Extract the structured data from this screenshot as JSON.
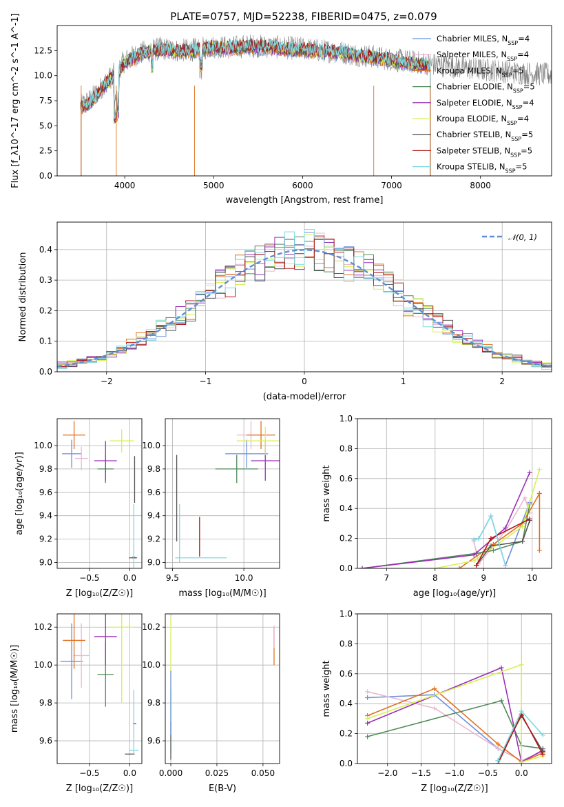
{
  "title": "PLATE=0757, MJD=52238, FIBERID=0475, z=0.079",
  "colors": {
    "chabrier_miles": "#6a8fe0",
    "salpeter_miles": "#e8b8d0",
    "kroupa_miles": "#e07020",
    "chabrier_elodie": "#4f8a5a",
    "salpeter_elodie": "#9a2fb5",
    "kroupa_elodie": "#d8f050",
    "chabrier_stelib": "#555555",
    "salpeter_stelib": "#b01818",
    "kroupa_stelib": "#7fd8e0",
    "data_gray": "#808080"
  },
  "chart_data": [
    {
      "id": "spectrum",
      "type": "line",
      "xlabel": "wavelength [Angstrom, rest frame]",
      "ylabel": "Flux [f_λ10^-17 erg cm^-2 s^-1 A^-1]",
      "xlim": [
        3240,
        8800
      ],
      "ylim": [
        0,
        15
      ],
      "xticks": [
        4000,
        5000,
        6000,
        7000,
        8000
      ],
      "yticks": [
        0.0,
        2.5,
        5.0,
        7.5,
        10.0,
        12.5
      ],
      "ytick_labels": [
        "0.0",
        "2.5",
        "5.0",
        "7.5",
        "10.0",
        "12.5"
      ],
      "legend_position": "top-right",
      "legend": [
        {
          "pre": "Chabrier MILES, N",
          "sub": "SSP",
          "post": "=4",
          "color": "#6a8fe0"
        },
        {
          "pre": "Salpeter MILES, N",
          "sub": "SSP",
          "post": "=4",
          "color": "#e8b8d0"
        },
        {
          "pre": "Kroupa MILES, N",
          "sub": "SSP",
          "post": "=5",
          "color": "#e07020"
        },
        {
          "pre": "Chabrier ELODIE, N",
          "sub": "SSP",
          "post": "=5",
          "color": "#4f8a5a"
        },
        {
          "pre": "Salpeter ELODIE, N",
          "sub": "SSP",
          "post": "=4",
          "color": "#9a2fb5"
        },
        {
          "pre": "Kroupa ELODIE, N",
          "sub": "SSP",
          "post": "=4",
          "color": "#d8f050"
        },
        {
          "pre": "Chabrier STELIB, N",
          "sub": "SSP",
          "post": "=5",
          "color": "#555555"
        },
        {
          "pre": "Salpeter STELIB, N",
          "sub": "SSP",
          "post": "=5",
          "color": "#b01818"
        },
        {
          "pre": "Kroupa STELIB, N",
          "sub": "SSP",
          "post": "=5",
          "color": "#7fd8e0"
        }
      ],
      "continuum": {
        "x": [
          3500,
          3600,
          3700,
          3800,
          3900,
          4000,
          4200,
          4400,
          4600,
          4800,
          5000,
          5200,
          5400,
          5600,
          5800,
          6000,
          6200,
          6400,
          6600,
          6800,
          7000,
          7200,
          7400
        ],
        "y": [
          6.8,
          7.2,
          8.2,
          9.3,
          10.0,
          11.3,
          12.2,
          12.6,
          12.4,
          12.5,
          12.8,
          12.7,
          12.9,
          12.8,
          12.6,
          12.6,
          12.4,
          12.3,
          12.0,
          11.8,
          11.5,
          11.2,
          11.0
        ]
      },
      "data_continuum": {
        "x": [
          3500,
          3600,
          3700,
          3800,
          3900,
          4000,
          4200,
          4400,
          4600,
          4800,
          5000,
          5200,
          5400,
          5600,
          5800,
          6000,
          6200,
          6400,
          6600,
          6800,
          7000,
          7200,
          7400,
          7600,
          7800,
          8000,
          8200,
          8400,
          8600,
          8800
        ],
        "y": [
          7.0,
          7.5,
          8.4,
          9.5,
          10.3,
          11.5,
          12.3,
          12.7,
          12.5,
          12.6,
          12.9,
          12.8,
          13.0,
          12.9,
          12.8,
          12.7,
          12.5,
          12.4,
          12.1,
          11.9,
          11.6,
          11.4,
          11.2,
          11.0,
          10.8,
          10.6,
          10.5,
          10.3,
          10.2,
          10.1
        ]
      },
      "drop_edges_x": [
        3510,
        3905,
        4785,
        6800,
        7435
      ]
    },
    {
      "id": "residuals",
      "type": "histogram",
      "xlabel": "(data-model)/error",
      "ylabel": "Normed distribution",
      "xlim": [
        -2.5,
        2.5
      ],
      "ylim": [
        0,
        0.49
      ],
      "xticks": [
        -2,
        -1,
        0,
        1,
        2
      ],
      "xtick_labels": [
        "−2",
        "−1",
        "0",
        "1",
        "2"
      ],
      "yticks": [
        0.0,
        0.1,
        0.2,
        0.3,
        0.4
      ],
      "ytick_labels": [
        "0.0",
        "0.1",
        "0.2",
        "0.3",
        "0.4"
      ],
      "legend_position": "top-right",
      "legend_label": "𝒩(0, 1)",
      "normal_curve": {
        "mean": 0,
        "sigma": 1,
        "color": "#5b8fd6"
      },
      "bins": {
        "start": -2.5,
        "width": 0.1,
        "count": 50
      }
    },
    {
      "id": "z_age",
      "type": "errorbar",
      "xlabel": "Z [log₁₀(Z/Z☉)]",
      "ylabel": "age  [log₁₀(age/yr)]",
      "xlim": [
        -0.9,
        0.15
      ],
      "ylim": [
        8.95,
        10.23
      ],
      "xticks": [
        -0.5,
        0.0
      ],
      "xtick_labels": [
        "−0.5",
        "0.0"
      ],
      "yticks": [
        9.0,
        9.2,
        9.4,
        9.6,
        9.8,
        10.0
      ],
      "ytick_labels": [
        "9.0",
        "9.2",
        "9.4",
        "9.6",
        "9.8",
        "10.0"
      ],
      "points": [
        {
          "x": -0.72,
          "xe": 0.12,
          "y": 9.93,
          "ye": 0.12,
          "color": "#6a8fe0"
        },
        {
          "x": -0.6,
          "xe": 0.08,
          "y": 9.89,
          "ye": 0.1,
          "color": "#e8b8d0"
        },
        {
          "x": -0.69,
          "xe": 0.14,
          "y": 10.09,
          "ye": 0.12,
          "color": "#e07020"
        },
        {
          "x": -0.3,
          "xe": 0.1,
          "y": 9.8,
          "ye": 0.12,
          "color": "#4f8a5a"
        },
        {
          "x": -0.3,
          "xe": 0.14,
          "y": 9.87,
          "ye": 0.17,
          "color": "#9a2fb5"
        },
        {
          "x": -0.1,
          "xe": 0.15,
          "y": 10.04,
          "ye": 0.1,
          "color": "#d8f050"
        },
        {
          "x": 0.04,
          "xe": 0.05,
          "y": 9.04,
          "ye": 0.0,
          "color": "#555555"
        },
        {
          "x": 0.05,
          "xe": 0.02,
          "y": 9.04,
          "ye": 0.0,
          "color": "#b01818"
        },
        {
          "x": 0.05,
          "xe": 0.02,
          "y": 9.05,
          "ye": 0.45,
          "color": "#7fd8e0"
        },
        {
          "x": 0.06,
          "xe": 0.0,
          "y": 9.71,
          "ye": 0.2,
          "color": "#555555"
        }
      ]
    },
    {
      "id": "mass_age",
      "type": "errorbar",
      "xlabel": "mass [log₁₀(M/M☉)]",
      "ylabel": "",
      "xlim": [
        9.45,
        10.25
      ],
      "ylim": [
        8.95,
        10.23
      ],
      "xticks": [
        9.5,
        10.0
      ],
      "xtick_labels": [
        "9.5",
        "10.0"
      ],
      "yticks": [
        9.0,
        9.2,
        9.4,
        9.6,
        9.8,
        10.0
      ],
      "ytick_labels": [
        "9.0",
        "9.2",
        "9.4",
        "9.6",
        "9.8",
        "10.0"
      ],
      "points": [
        {
          "x": 10.02,
          "xe": 0.15,
          "y": 9.93,
          "ye": 0.12,
          "color": "#6a8fe0"
        },
        {
          "x": 10.05,
          "xe": 0.1,
          "y": 10.09,
          "ye": 0.12,
          "color": "#e8b8d0"
        },
        {
          "x": 10.12,
          "xe": 0.1,
          "y": 10.09,
          "ye": 0.12,
          "color": "#e07020"
        },
        {
          "x": 9.95,
          "xe": 0.15,
          "y": 9.8,
          "ye": 0.12,
          "color": "#4f8a5a"
        },
        {
          "x": 10.15,
          "xe": 0.1,
          "y": 9.87,
          "ye": 0.17,
          "color": "#9a2fb5"
        },
        {
          "x": 10.15,
          "xe": 0.2,
          "y": 10.04,
          "ye": 0.12,
          "color": "#d8f050"
        },
        {
          "x": 9.53,
          "xe": 0.0,
          "y": 9.55,
          "ye": 0.37,
          "color": "#555555"
        },
        {
          "x": 9.69,
          "xe": 0.0,
          "y": 9.22,
          "ye": 0.17,
          "color": "#b01818"
        },
        {
          "x": 9.7,
          "xe": 0.18,
          "y": 9.04,
          "ye": 0.0,
          "color": "#7fd8e0"
        },
        {
          "x": 9.55,
          "xe": 0.0,
          "y": 9.25,
          "ye": 0.25,
          "color": "#7fd8e0"
        }
      ]
    },
    {
      "id": "age_weight",
      "type": "line",
      "xlabel": "age  [log₁₀(age/yr)]",
      "ylabel": "mass weight",
      "xlim": [
        6.4,
        10.4
      ],
      "ylim": [
        0,
        1.0
      ],
      "xticks": [
        7,
        8,
        9,
        10
      ],
      "xtick_labels": [
        "7",
        "8",
        "9",
        "10"
      ],
      "yticks": [
        0.0,
        0.2,
        0.4,
        0.6,
        0.8,
        1.0
      ],
      "ytick_labels": [
        "0.0",
        "0.2",
        "0.4",
        "0.6",
        "0.8",
        "1.0"
      ],
      "series": [
        {
          "color": "#6a8fe0",
          "x": [
            8.8,
            8.9,
            9.15,
            9.45,
            9.95
          ],
          "y": [
            0.19,
            0.2,
            0.35,
            0.02,
            0.44
          ]
        },
        {
          "color": "#e8b8d0",
          "x": [
            8.8,
            8.9,
            9.45,
            9.85,
            9.95
          ],
          "y": [
            0.18,
            0.03,
            0.25,
            0.47,
            0.37
          ]
        },
        {
          "color": "#e07020",
          "x": [
            8.5,
            9.2,
            9.8,
            10.15,
            10.15
          ],
          "y": [
            0.0,
            0.16,
            0.3,
            0.5,
            0.12
          ]
        },
        {
          "color": "#4f8a5a",
          "x": [
            6.5,
            8.85,
            9.2,
            9.8,
            9.95
          ],
          "y": [
            0.0,
            0.1,
            0.12,
            0.18,
            0.43
          ]
        },
        {
          "color": "#9a2fb5",
          "x": [
            6.5,
            8.8,
            9.45,
            9.95
          ],
          "y": [
            0.0,
            0.09,
            0.27,
            0.64
          ]
        },
        {
          "color": "#d8f050",
          "x": [
            8.0,
            8.8,
            9.8,
            10.15
          ],
          "y": [
            0.0,
            0.05,
            0.28,
            0.66
          ]
        },
        {
          "color": "#555555",
          "x": [
            8.85,
            9.15,
            9.8,
            9.95
          ],
          "y": [
            0.02,
            0.15,
            0.18,
            0.32
          ]
        },
        {
          "color": "#b01818",
          "x": [
            8.85,
            9.15,
            9.95
          ],
          "y": [
            0.02,
            0.2,
            0.33
          ]
        },
        {
          "color": "#7fd8e0",
          "x": [
            8.8,
            8.9,
            9.15,
            9.45
          ],
          "y": [
            0.19,
            0.2,
            0.35,
            0.02
          ]
        }
      ]
    },
    {
      "id": "z_mass",
      "type": "errorbar",
      "xlabel": "Z [log₁₀(Z/Z☉)]",
      "ylabel": "mass [log₁₀(M/M☉)]",
      "xlim": [
        -0.9,
        0.15
      ],
      "ylim": [
        9.48,
        10.27
      ],
      "xticks": [
        -0.5,
        0.0
      ],
      "xtick_labels": [
        "−0.5",
        "0.0"
      ],
      "yticks": [
        9.6,
        9.8,
        10.0,
        10.2
      ],
      "ytick_labels": [
        "9.6",
        "9.8",
        "10.0",
        "10.2"
      ],
      "points": [
        {
          "x": -0.72,
          "xe": 0.14,
          "y": 10.02,
          "ye": 0.2,
          "color": "#6a8fe0"
        },
        {
          "x": -0.6,
          "xe": 0.1,
          "y": 10.05,
          "ye": 0.17,
          "color": "#e8b8d0"
        },
        {
          "x": -0.69,
          "xe": 0.14,
          "y": 10.13,
          "ye": 0.15,
          "color": "#e07020"
        },
        {
          "x": -0.3,
          "xe": 0.1,
          "y": 9.95,
          "ye": 0.17,
          "color": "#4f8a5a"
        },
        {
          "x": -0.3,
          "xe": 0.14,
          "y": 10.15,
          "ye": 0.15,
          "color": "#9a2fb5"
        },
        {
          "x": -0.1,
          "xe": 0.15,
          "y": 10.2,
          "ye": 0.4,
          "color": "#d8f050"
        },
        {
          "x": 0.0,
          "xe": 0.06,
          "y": 9.53,
          "ye": 0.0,
          "color": "#555555"
        },
        {
          "x": 0.06,
          "xe": 0.02,
          "y": 9.69,
          "ye": 0.0,
          "color": "#b01818"
        },
        {
          "x": 0.05,
          "xe": 0.06,
          "y": 9.55,
          "ye": 0.0,
          "color": "#7fd8e0"
        },
        {
          "x": 0.05,
          "xe": 0.0,
          "y": 9.7,
          "ye": 0.17,
          "color": "#7fd8e0"
        }
      ]
    },
    {
      "id": "ebv_mass",
      "type": "errorbar",
      "xlabel": "E(B-V)",
      "ylabel": "",
      "xlim": [
        -0.003,
        0.059
      ],
      "ylim": [
        9.48,
        10.27
      ],
      "xticks": [
        0.0,
        0.025,
        0.05
      ],
      "xtick_labels": [
        "0.000",
        "0.025",
        "0.050"
      ],
      "yticks": [
        9.6,
        9.8,
        10.0,
        10.2
      ],
      "ytick_labels": [
        "9.6",
        "9.8",
        "10.0",
        "10.2"
      ],
      "points": [
        {
          "x": 0.0,
          "xe": 0.0,
          "y": 9.95,
          "ye": 0.3,
          "color": "#d8f050"
        },
        {
          "x": 0.0,
          "xe": 0.0,
          "y": 9.7,
          "ye": 0.17,
          "color": "#7fd8e0"
        },
        {
          "x": 0.0,
          "xe": 0.0,
          "y": 9.6,
          "ye": 0.1,
          "color": "#555555"
        },
        {
          "x": 0.0,
          "xe": 0.0,
          "y": 9.8,
          "ye": 0.17,
          "color": "#6a8fe0"
        },
        {
          "x": 0.056,
          "xe": 0.0,
          "y": 10.1,
          "ye": 0.1,
          "color": "#e07020"
        },
        {
          "x": 0.056,
          "xe": 0.0,
          "y": 10.15,
          "ye": 0.06,
          "color": "#e8b8d0"
        }
      ]
    },
    {
      "id": "z_weight",
      "type": "line",
      "xlabel": "Z [log₁₀(Z/Z☉)]",
      "ylabel": "mass weight",
      "xlim": [
        -2.45,
        0.45
      ],
      "ylim": [
        0,
        1.0
      ],
      "xticks": [
        -2.0,
        -1.5,
        -1.0,
        -0.5,
        0.0
      ],
      "xtick_labels": [
        "−2.0",
        "−1.5",
        "−1.0",
        "−0.5",
        "0.0"
      ],
      "yticks": [
        0.0,
        0.2,
        0.4,
        0.6,
        0.8,
        1.0
      ],
      "ytick_labels": [
        "0.0",
        "0.2",
        "0.4",
        "0.6",
        "0.8",
        "1.0"
      ],
      "series": [
        {
          "color": "#6a8fe0",
          "x": [
            -2.3,
            -1.3,
            -0.35,
            0.0,
            0.32
          ],
          "y": [
            0.44,
            0.46,
            0.1,
            0.02,
            0.08
          ]
        },
        {
          "color": "#e8b8d0",
          "x": [
            -2.3,
            -1.3,
            -0.35,
            0.0,
            0.32
          ],
          "y": [
            0.48,
            0.37,
            0.1,
            0.02,
            0.08
          ]
        },
        {
          "color": "#e07020",
          "x": [
            -2.3,
            -1.3,
            -0.35,
            0.0,
            0.32
          ],
          "y": [
            0.32,
            0.5,
            0.13,
            0.01,
            0.07
          ]
        },
        {
          "color": "#4f8a5a",
          "x": [
            -2.3,
            -0.3,
            0.0,
            0.32
          ],
          "y": [
            0.18,
            0.42,
            0.12,
            0.1
          ]
        },
        {
          "color": "#9a2fb5",
          "x": [
            -2.3,
            -0.3,
            0.0,
            0.32
          ],
          "y": [
            0.27,
            0.64,
            0.01,
            0.09
          ]
        },
        {
          "color": "#d8f050",
          "x": [
            -2.3,
            0.0,
            0.0,
            0.32
          ],
          "y": [
            0.3,
            0.66,
            0.01,
            0.05
          ]
        },
        {
          "color": "#555555",
          "x": [
            -0.35,
            0.0,
            0.32
          ],
          "y": [
            0.02,
            0.32,
            0.08
          ]
        },
        {
          "color": "#b01818",
          "x": [
            -0.35,
            0.0,
            0.32
          ],
          "y": [
            0.0,
            0.33,
            0.06
          ]
        },
        {
          "color": "#7fd8e0",
          "x": [
            -0.35,
            0.0,
            0.32
          ],
          "y": [
            0.02,
            0.35,
            0.19
          ]
        }
      ]
    }
  ]
}
